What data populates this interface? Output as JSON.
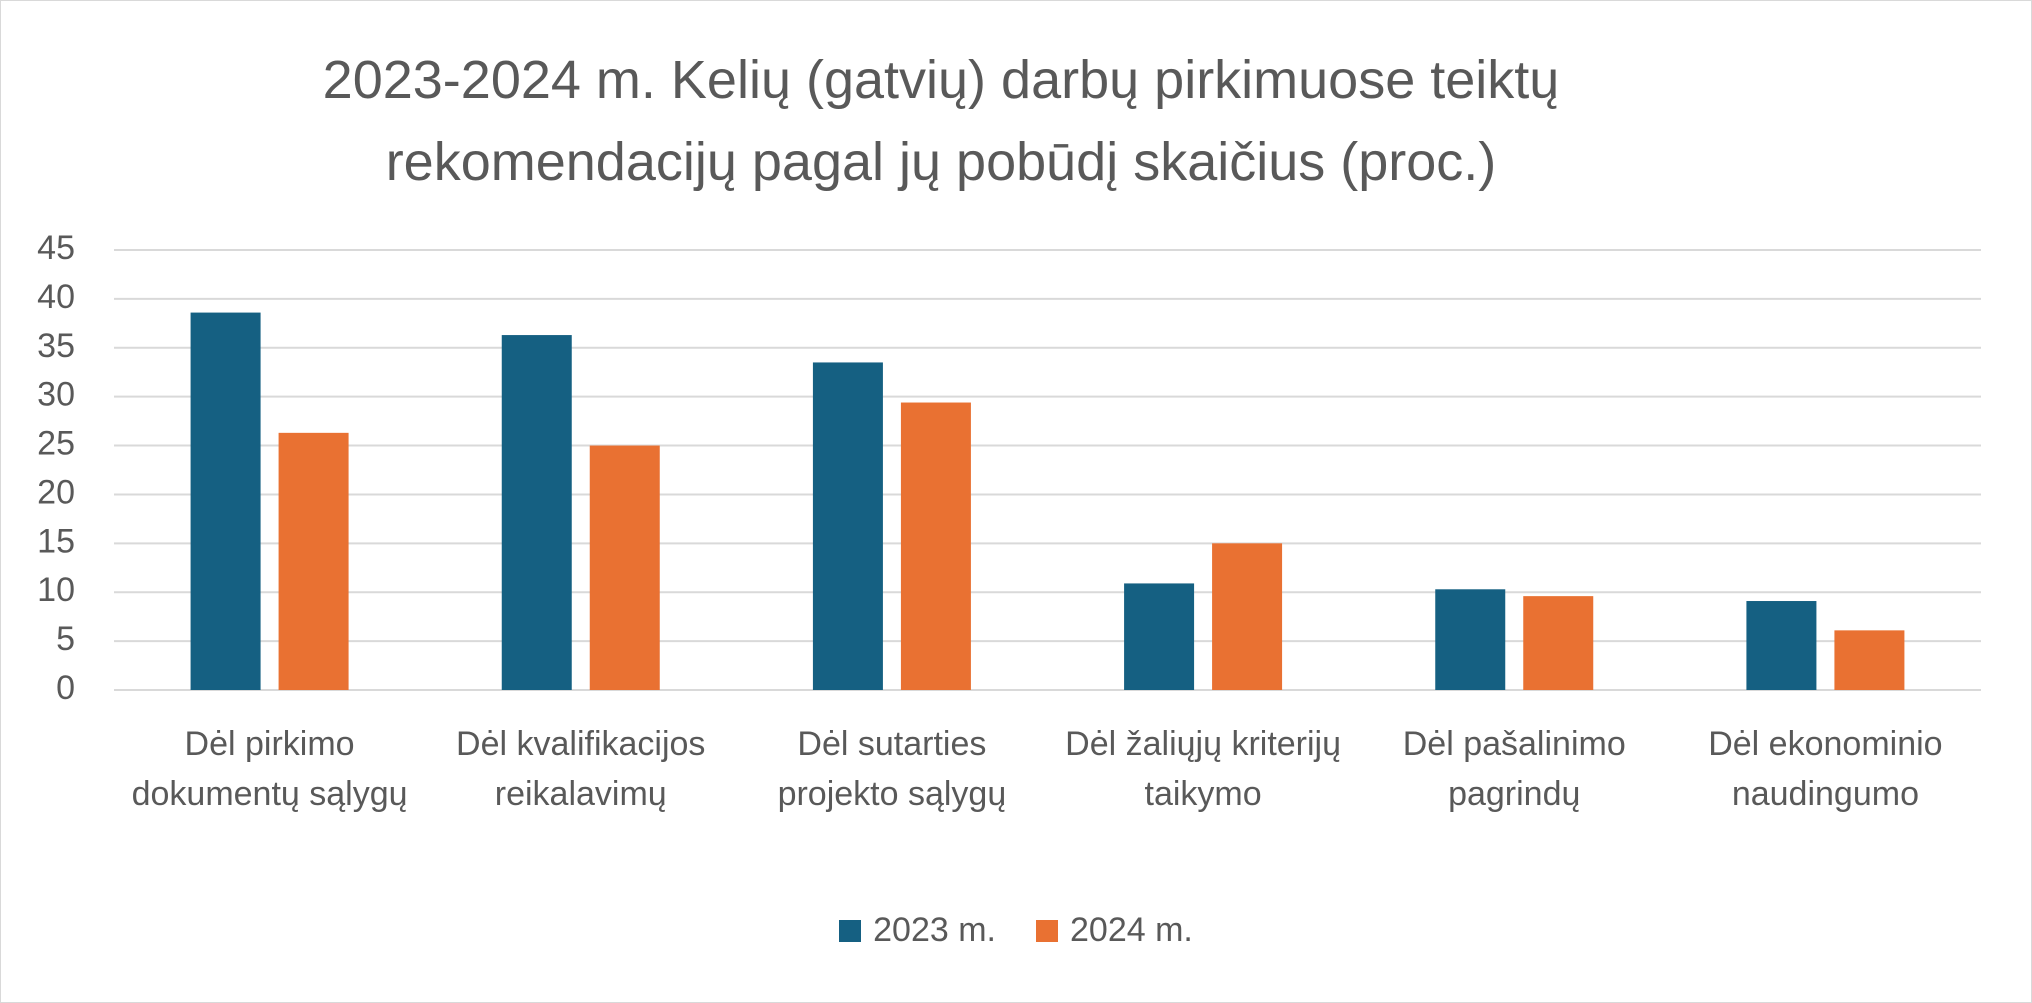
{
  "chart_data": {
    "type": "bar",
    "title": "2023-2024 m. Kelių (gatvių) darbų pirkimuose teiktų rekomendacijų pagal jų pobūdį skaičius (proc.)",
    "categories": [
      "Dėl pirkimo dokumentų sąlygų",
      "Dėl kvalifikacijos reikalavimų",
      "Dėl sutarties projekto sąlygų",
      "Dėl žaliųjų kriterijų taikymo",
      "Dėl pašalinimo pagrindų",
      "Dėl ekonominio naudingumo"
    ],
    "series": [
      {
        "name": "2023 m.",
        "color": "#156082",
        "values": [
          38.6,
          36.3,
          33.5,
          10.9,
          10.3,
          9.1
        ]
      },
      {
        "name": "2024 m.",
        "color": "#e97132",
        "values": [
          26.3,
          25.0,
          29.4,
          15.0,
          9.6,
          6.1
        ]
      }
    ],
    "ylim": [
      0,
      45
    ],
    "yticks": [
      0,
      5,
      10,
      15,
      20,
      25,
      30,
      35,
      40,
      45
    ],
    "grid": true,
    "legend": "bottom"
  }
}
